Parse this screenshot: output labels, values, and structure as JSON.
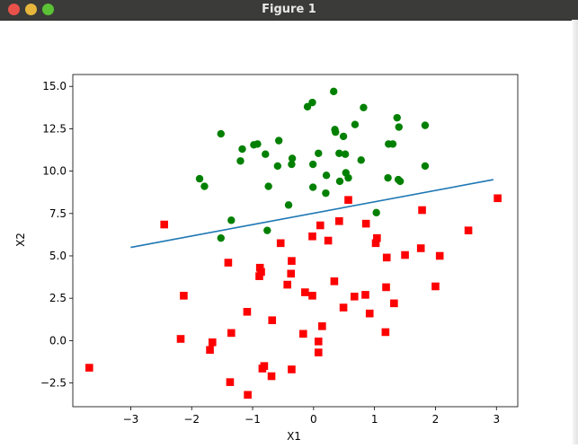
{
  "window": {
    "title": "Figure 1"
  },
  "chart_data": {
    "type": "scatter",
    "title": "",
    "xlabel": "X1",
    "ylabel": "X2",
    "xlim": [
      -3.95,
      3.35
    ],
    "ylim": [
      -3.9,
      15.7
    ],
    "xticks": [
      -3,
      -2,
      -1,
      0,
      1,
      2,
      3
    ],
    "xtick_labels": [
      "−3",
      "−2",
      "−1",
      "0",
      "1",
      "2",
      "3"
    ],
    "yticks": [
      -2.5,
      0,
      2.5,
      5,
      7.5,
      10,
      12.5,
      15
    ],
    "ytick_labels": [
      "−2.5",
      "0.0",
      "2.5",
      "5.0",
      "7.5",
      "10.0",
      "12.5",
      "15.0"
    ],
    "grid": false,
    "series": [
      {
        "marker": "circle",
        "color": "#008000",
        "points": [
          [
            0.33,
            14.7
          ],
          [
            -0.02,
            14.05
          ],
          [
            -0.1,
            13.8
          ],
          [
            0.82,
            13.75
          ],
          [
            1.37,
            13.15
          ],
          [
            1.4,
            12.6
          ],
          [
            1.83,
            12.7
          ],
          [
            0.68,
            12.75
          ],
          [
            0.35,
            12.45
          ],
          [
            0.36,
            12.3
          ],
          [
            0.49,
            12.05
          ],
          [
            -1.52,
            12.2
          ],
          [
            -0.57,
            11.8
          ],
          [
            -0.98,
            11.55
          ],
          [
            -0.92,
            11.6
          ],
          [
            1.23,
            11.6
          ],
          [
            1.3,
            11.6
          ],
          [
            -1.17,
            11.3
          ],
          [
            0.08,
            11.05
          ],
          [
            0.42,
            11.05
          ],
          [
            0.52,
            11.0
          ],
          [
            -0.79,
            11.0
          ],
          [
            -0.35,
            10.75
          ],
          [
            0.78,
            10.65
          ],
          [
            -1.2,
            10.6
          ],
          [
            -0.59,
            10.3
          ],
          [
            -0.36,
            10.4
          ],
          [
            -0.01,
            10.4
          ],
          [
            1.83,
            10.3
          ],
          [
            0.53,
            9.9
          ],
          [
            0.57,
            9.6
          ],
          [
            0.21,
            9.75
          ],
          [
            0.43,
            9.4
          ],
          [
            -1.87,
            9.55
          ],
          [
            1.22,
            9.6
          ],
          [
            1.39,
            9.5
          ],
          [
            1.42,
            9.4
          ],
          [
            -1.79,
            9.1
          ],
          [
            -0.74,
            9.1
          ],
          [
            -0.01,
            9.05
          ],
          [
            0.2,
            8.7
          ],
          [
            -0.41,
            8.0
          ],
          [
            1.03,
            7.55
          ],
          [
            -1.35,
            7.1
          ],
          [
            -0.76,
            6.5
          ],
          [
            -1.52,
            6.05
          ]
        ]
      },
      {
        "marker": "square",
        "color": "#ff0000",
        "points": [
          [
            3.02,
            8.4
          ],
          [
            0.57,
            8.3
          ],
          [
            1.78,
            7.7
          ],
          [
            -2.45,
            6.85
          ],
          [
            0.11,
            6.8
          ],
          [
            0.42,
            7.05
          ],
          [
            0.86,
            6.9
          ],
          [
            2.54,
            6.5
          ],
          [
            -0.02,
            6.15
          ],
          [
            1.04,
            6.05
          ],
          [
            0.24,
            5.9
          ],
          [
            -0.54,
            5.75
          ],
          [
            1.02,
            5.75
          ],
          [
            1.76,
            5.45
          ],
          [
            1.5,
            5.05
          ],
          [
            2.07,
            5.0
          ],
          [
            1.2,
            4.9
          ],
          [
            -1.4,
            4.6
          ],
          [
            -0.36,
            4.7
          ],
          [
            -0.88,
            4.3
          ],
          [
            -0.86,
            4.05
          ],
          [
            -0.37,
            3.95
          ],
          [
            -0.89,
            3.8
          ],
          [
            0.34,
            3.5
          ],
          [
            -0.43,
            3.3
          ],
          [
            1.19,
            3.15
          ],
          [
            2.0,
            3.2
          ],
          [
            -0.14,
            2.85
          ],
          [
            -0.02,
            2.65
          ],
          [
            0.67,
            2.6
          ],
          [
            0.85,
            2.7
          ],
          [
            -2.13,
            2.65
          ],
          [
            1.32,
            2.2
          ],
          [
            0.49,
            1.95
          ],
          [
            -1.09,
            1.7
          ],
          [
            0.92,
            1.6
          ],
          [
            -0.68,
            1.2
          ],
          [
            0.14,
            0.85
          ],
          [
            1.18,
            0.5
          ],
          [
            -1.35,
            0.45
          ],
          [
            -0.17,
            0.4
          ],
          [
            -2.18,
            0.1
          ],
          [
            0.08,
            -0.05
          ],
          [
            -1.66,
            -0.1
          ],
          [
            -1.7,
            -0.55
          ],
          [
            0.08,
            -0.7
          ],
          [
            -3.68,
            -1.6
          ],
          [
            -0.81,
            -1.5
          ],
          [
            -0.84,
            -1.65
          ],
          [
            -0.36,
            -1.7
          ],
          [
            -0.69,
            -2.1
          ],
          [
            -1.37,
            -2.45
          ],
          [
            -1.08,
            -3.2
          ]
        ]
      },
      {
        "marker": "line",
        "color": "#1f77b4",
        "points": [
          [
            -3.0,
            5.5
          ],
          [
            2.95,
            9.5
          ]
        ]
      }
    ]
  }
}
